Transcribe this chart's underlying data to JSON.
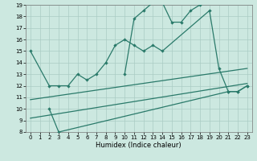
{
  "xlabel": "Humidex (Indice chaleur)",
  "bg_color": "#cce8e0",
  "grid_color": "#aaccc4",
  "line_color": "#2a7a6a",
  "xlim": [
    -0.5,
    23.5
  ],
  "ylim": [
    8,
    19
  ],
  "yticks": [
    8,
    9,
    10,
    11,
    12,
    13,
    14,
    15,
    16,
    17,
    18,
    19
  ],
  "xticks": [
    0,
    1,
    2,
    3,
    4,
    5,
    6,
    7,
    8,
    9,
    10,
    11,
    12,
    13,
    14,
    15,
    16,
    17,
    18,
    19,
    20,
    21,
    22,
    23
  ],
  "s1x": [
    0,
    2,
    3,
    4,
    5,
    6,
    7,
    8,
    9,
    10,
    11,
    12,
    13,
    14,
    19,
    20,
    21,
    22,
    23
  ],
  "s1y": [
    15,
    12,
    12,
    12,
    13,
    12.5,
    13,
    14,
    15.5,
    16,
    15.5,
    15,
    15.5,
    15,
    18.5,
    13.5,
    11.5,
    11.5,
    12
  ],
  "s2x": [
    10,
    11,
    12,
    13,
    14,
    15,
    16,
    17,
    18
  ],
  "s2y": [
    13,
    17.8,
    18.5,
    19.2,
    19.2,
    17.5,
    17.5,
    18.5,
    19
  ],
  "s3x": [
    2,
    3,
    21,
    22,
    23
  ],
  "s3y": [
    10,
    8,
    11.5,
    11.5,
    12
  ],
  "s4x": [
    0,
    23
  ],
  "s4y": [
    10.8,
    13.5
  ],
  "s5x": [
    0,
    23
  ],
  "s5y": [
    9.2,
    12.2
  ]
}
